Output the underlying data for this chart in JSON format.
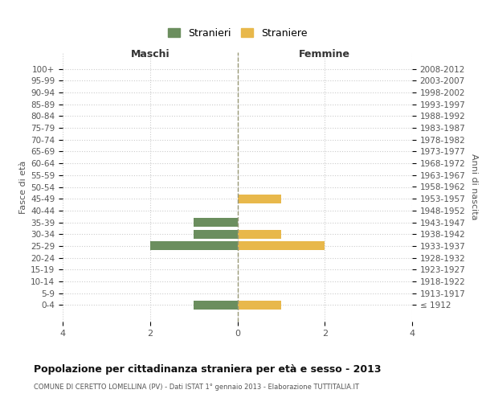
{
  "age_groups": [
    "100+",
    "95-99",
    "90-94",
    "85-89",
    "80-84",
    "75-79",
    "70-74",
    "65-69",
    "60-64",
    "55-59",
    "50-54",
    "45-49",
    "40-44",
    "35-39",
    "30-34",
    "25-29",
    "20-24",
    "15-19",
    "10-14",
    "5-9",
    "0-4"
  ],
  "birth_years": [
    "≤ 1912",
    "1913-1917",
    "1918-1922",
    "1923-1927",
    "1928-1932",
    "1933-1937",
    "1938-1942",
    "1943-1947",
    "1948-1952",
    "1953-1957",
    "1958-1962",
    "1963-1967",
    "1968-1972",
    "1973-1977",
    "1978-1982",
    "1983-1987",
    "1988-1992",
    "1993-1997",
    "1998-2002",
    "2003-2007",
    "2008-2012"
  ],
  "males": [
    0,
    0,
    0,
    0,
    0,
    0,
    0,
    0,
    0,
    0,
    0,
    0,
    0,
    1,
    1,
    2,
    0,
    0,
    0,
    0,
    1
  ],
  "females": [
    0,
    0,
    0,
    0,
    0,
    0,
    0,
    0,
    0,
    0,
    0,
    1,
    0,
    0,
    1,
    2,
    0,
    0,
    0,
    0,
    1
  ],
  "male_color": "#6b8e5e",
  "female_color": "#e8b84b",
  "title": "Popolazione per cittadinanza straniera per età e sesso - 2013",
  "subtitle": "COMUNE DI CERETTO LOMELLINA (PV) - Dati ISTAT 1° gennaio 2013 - Elaborazione TUTTITALIA.IT",
  "legend_male": "Stranieri",
  "legend_female": "Straniere",
  "ylabel_left": "Fasce di età",
  "ylabel_right": "Anni di nascita",
  "xlabel_left": "Maschi",
  "xlabel_right": "Femmine",
  "xlim": 4,
  "grid_color": "#cccccc",
  "bg_color": "#ffffff",
  "bar_height": 0.75
}
